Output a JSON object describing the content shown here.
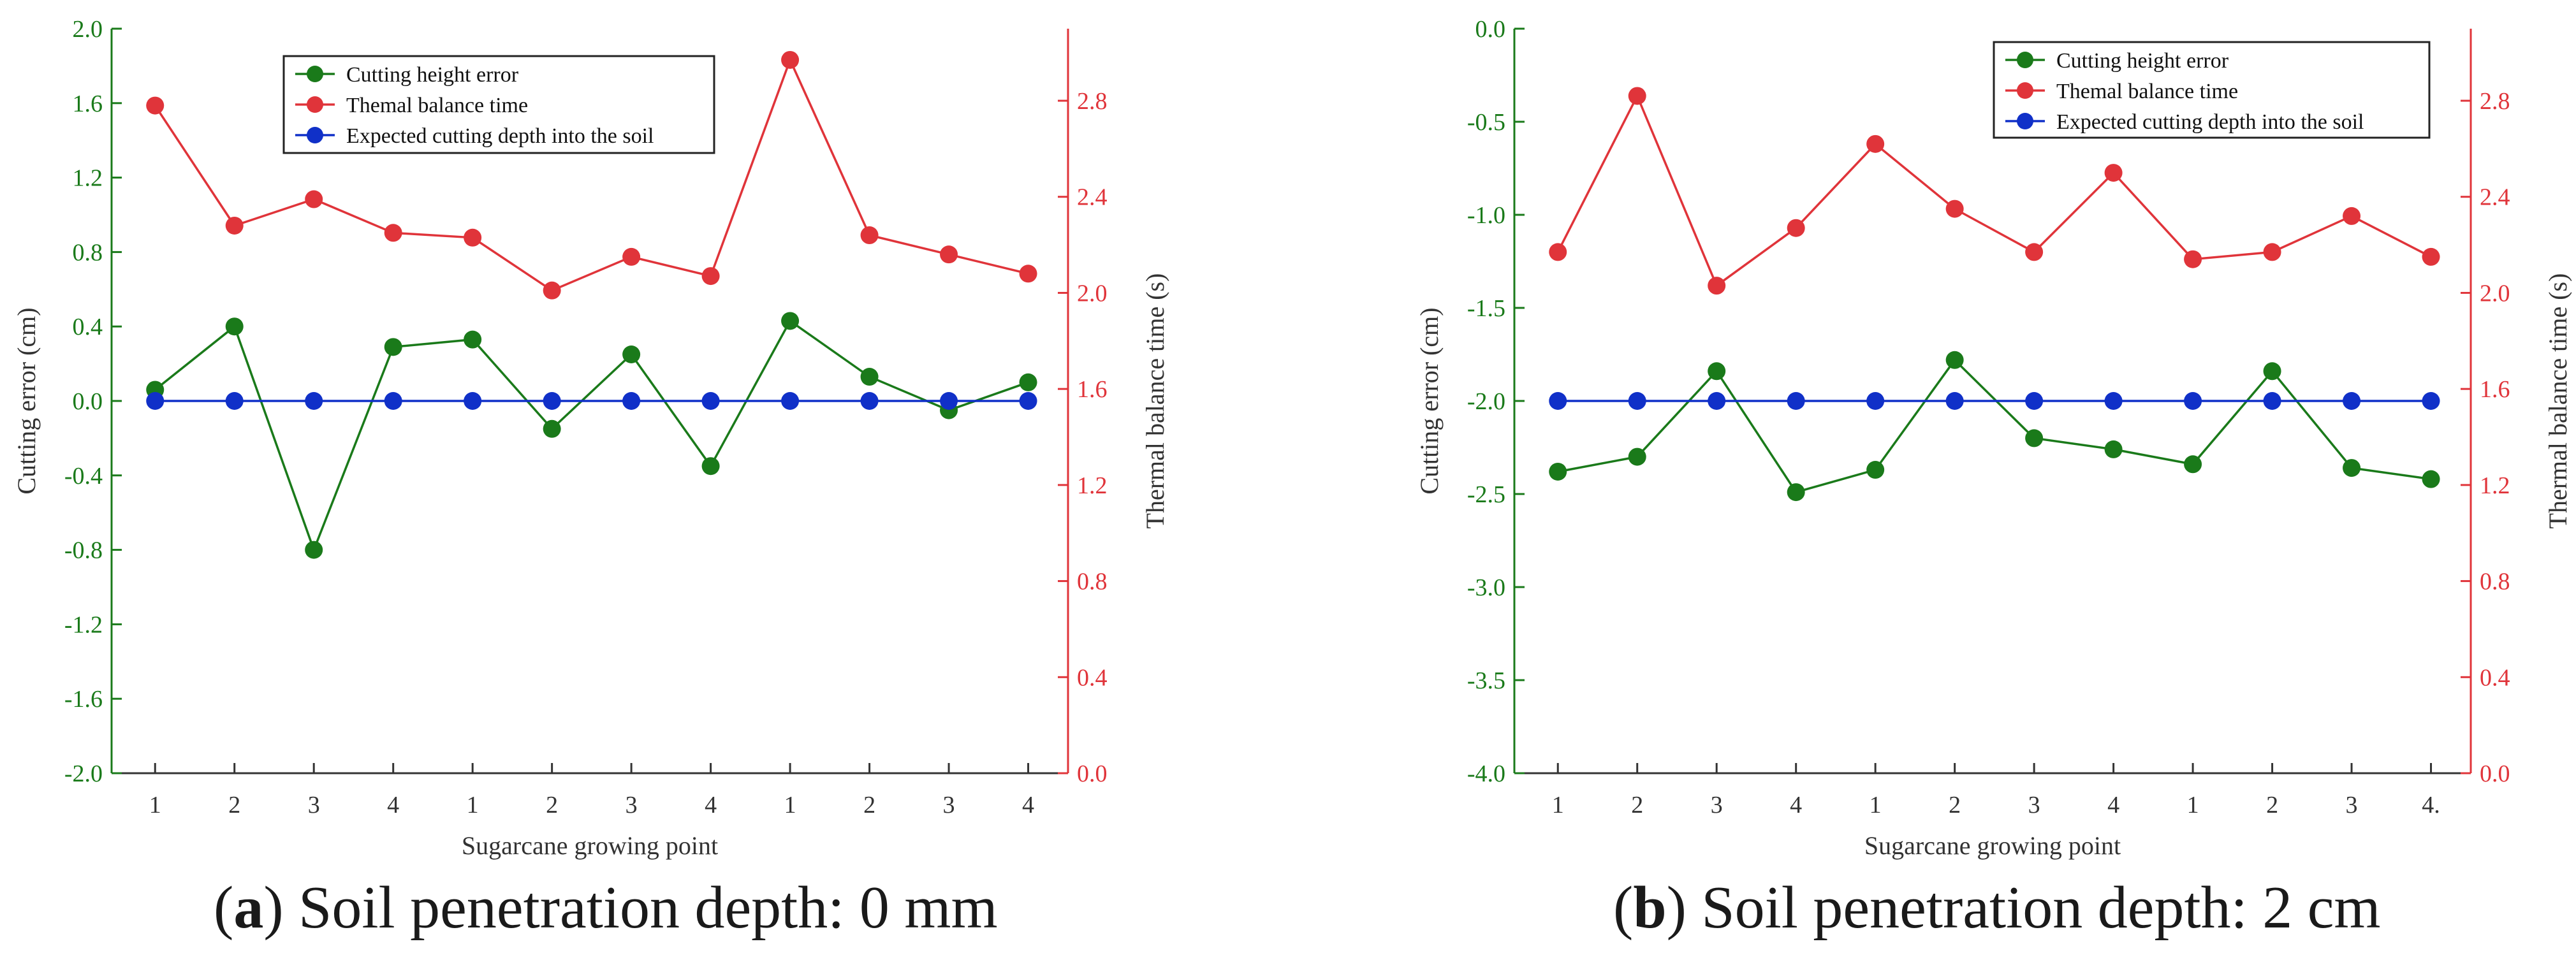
{
  "chart_data": [
    {
      "type": "line",
      "panel_label": "a",
      "caption": "Soil penetration depth: 0 mm",
      "categories": [
        "1",
        "2",
        "3",
        "4",
        "1",
        "2",
        "3",
        "4",
        "1",
        "2",
        "3",
        "4"
      ],
      "xlabel": "Sugarcane growing point",
      "ylabel": "Cutting error (cm)",
      "ylabel_right": "Thermal balance time (s)",
      "ylim": [
        -2.0,
        2.0
      ],
      "ylim_right": [
        0.0,
        3.1
      ],
      "yticks": [
        "-2.0",
        "-1.6",
        "-1.2",
        "-0.8",
        "-0.4",
        "0.0",
        "0.4",
        "0.8",
        "1.2",
        "1.6",
        "2.0"
      ],
      "yticks_right": [
        "0.0",
        "0.4",
        "0.8",
        "1.2",
        "1.6",
        "2.0",
        "2.4",
        "2.8"
      ],
      "legend_position": "top-center",
      "series": [
        {
          "name": "Cutting height error",
          "axis": "left",
          "color": "#1a7a1a",
          "values": [
            0.06,
            0.4,
            -0.8,
            0.29,
            0.33,
            -0.15,
            0.25,
            -0.35,
            0.43,
            0.13,
            -0.05,
            0.1
          ]
        },
        {
          "name": "Themal balance time",
          "axis": "right",
          "color": "#e0343a",
          "values": [
            2.78,
            2.28,
            2.39,
            2.25,
            2.23,
            2.01,
            2.15,
            2.07,
            2.97,
            2.24,
            2.16,
            2.08
          ]
        },
        {
          "name": "Expected cutting depth into the soil",
          "axis": "left",
          "color": "#1030c8",
          "values": [
            0,
            0,
            0,
            0,
            0,
            0,
            0,
            0,
            0,
            0,
            0,
            0
          ]
        }
      ]
    },
    {
      "type": "line",
      "panel_label": "b",
      "caption": "Soil penetration depth: 2 cm",
      "categories": [
        "1",
        "2",
        "3",
        "4",
        "1",
        "2",
        "3",
        "4",
        "1",
        "2",
        "3",
        "4."
      ],
      "xlabel": "Sugarcane growing point",
      "ylabel": "Cutting error (cm)",
      "ylabel_right": "Thermal balance time (s)",
      "ylim": [
        -4.0,
        0.0
      ],
      "ylim_right": [
        0.0,
        3.1
      ],
      "yticks": [
        "-4.0",
        "-3.5",
        "-3.0",
        "-2.5",
        "-2.0",
        "-1.5",
        "-1.0",
        "-0.5",
        "0.0"
      ],
      "yticks_right": [
        "0.0",
        "0.4",
        "0.8",
        "1.2",
        "1.6",
        "2.0",
        "2.4",
        "2.8"
      ],
      "legend_position": "top-right",
      "series": [
        {
          "name": "Cutting height error",
          "axis": "left",
          "color": "#1a7a1a",
          "values": [
            -2.38,
            -2.3,
            -1.84,
            -2.49,
            -2.37,
            -1.78,
            -2.2,
            -2.26,
            -2.34,
            -1.84,
            -2.36,
            -2.42
          ]
        },
        {
          "name": "Themal balance time",
          "axis": "right",
          "color": "#e0343a",
          "values": [
            2.17,
            2.82,
            2.03,
            2.27,
            2.62,
            2.35,
            2.17,
            2.5,
            2.14,
            2.17,
            2.32,
            2.15
          ]
        },
        {
          "name": "Expected cutting depth into the soil",
          "axis": "left",
          "color": "#1030c8",
          "values": [
            -2,
            -2,
            -2,
            -2,
            -2,
            -2,
            -2,
            -2,
            -2,
            -2,
            -2,
            -2
          ]
        }
      ]
    }
  ]
}
